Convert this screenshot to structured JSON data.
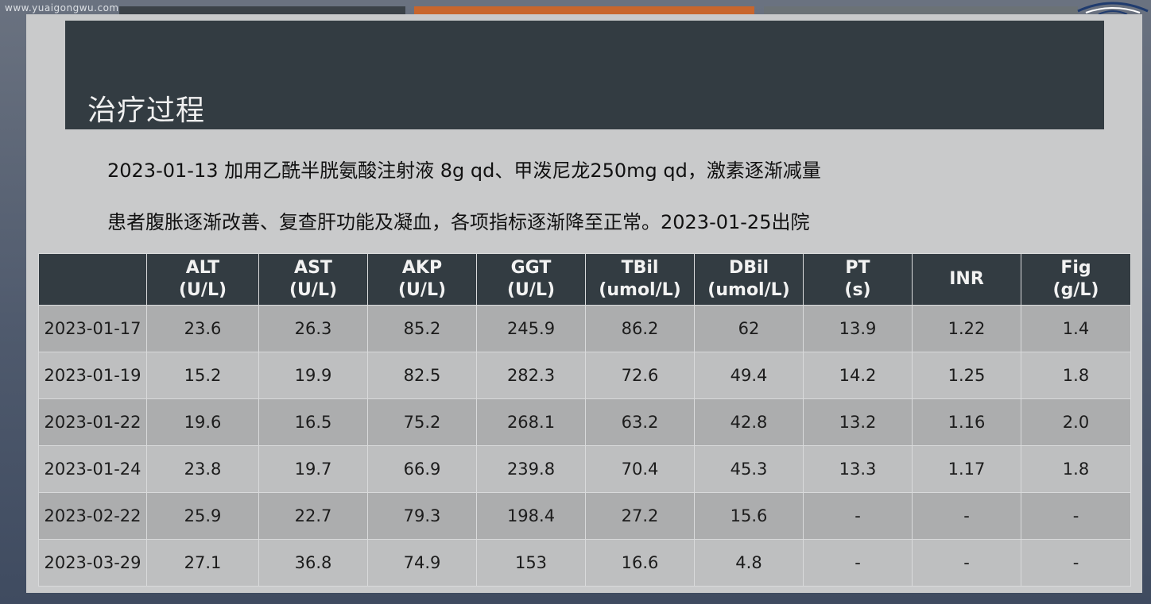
{
  "watermark": "www.yuaigongwu.com",
  "slide": {
    "title": "治疗过程",
    "lines": [
      "2023-01-13 加用乙酰半胱氨酸注射液 8g qd、甲泼尼龙250mg qd，激素逐渐减量",
      "患者腹胀逐渐改善、复查肝功能及凝血，各项指标逐渐降至正常。2023-01-25出院"
    ]
  },
  "table": {
    "headers": [
      {
        "name": "",
        "unit": ""
      },
      {
        "name": "ALT",
        "unit": "(U/L)"
      },
      {
        "name": "AST",
        "unit": "(U/L)"
      },
      {
        "name": "AKP",
        "unit": "(U/L)"
      },
      {
        "name": "GGT",
        "unit": "(U/L)"
      },
      {
        "name": "TBil",
        "unit": "(umol/L)"
      },
      {
        "name": "DBil",
        "unit": "(umol/L)"
      },
      {
        "name": "PT",
        "unit": "(s)"
      },
      {
        "name": "INR",
        "unit": ""
      },
      {
        "name": "Fig",
        "unit": "(g/L)"
      }
    ],
    "rows": [
      [
        "2023-01-17",
        "23.6",
        "26.3",
        "85.2",
        "245.9",
        "86.2",
        "62",
        "13.9",
        "1.22",
        "1.4"
      ],
      [
        "2023-01-19",
        "15.2",
        "19.9",
        "82.5",
        "282.3",
        "72.6",
        "49.4",
        "14.2",
        "1.25",
        "1.8"
      ],
      [
        "2023-01-22",
        "19.6",
        "16.5",
        "75.2",
        "268.1",
        "63.2",
        "42.8",
        "13.2",
        "1.16",
        "2.0"
      ],
      [
        "2023-01-24",
        "23.8",
        "19.7",
        "66.9",
        "239.8",
        "70.4",
        "45.3",
        "13.3",
        "1.17",
        "1.8"
      ],
      [
        "2023-02-22",
        "25.9",
        "22.7",
        "79.3",
        "198.4",
        "27.2",
        "15.6",
        "-",
        "-",
        "-"
      ],
      [
        "2023-03-29",
        "27.1",
        "36.8",
        "74.9",
        "153",
        "16.6",
        "4.8",
        "-",
        "-",
        "-"
      ]
    ]
  },
  "colors": {
    "title_band": "#333c42",
    "accent_bar": "#c8662d",
    "row_odd": "#acadae",
    "row_even": "#bebfc0",
    "slide_bg": "#c9cacb"
  },
  "icons": {
    "logo": "eye-arc-logo-icon"
  }
}
